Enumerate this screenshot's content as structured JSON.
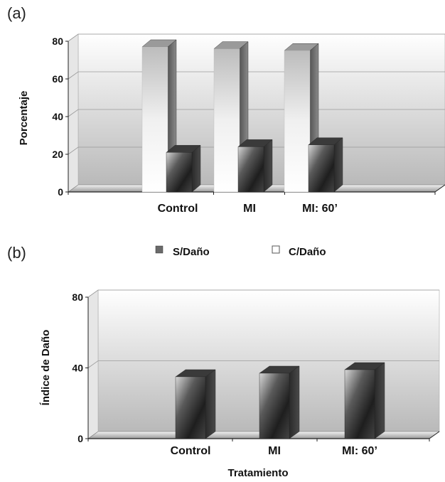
{
  "chart_data": [
    {
      "panel": "(a)",
      "type": "bar",
      "style": "3d",
      "categories": [
        "Control",
        "MI",
        "MI: 60’"
      ],
      "series": [
        {
          "name": "C/Daño",
          "values": [
            77,
            76,
            75
          ],
          "color": "#f4f4f4"
        },
        {
          "name": "S/Daño",
          "values": [
            21,
            24,
            25
          ],
          "color": "#4a4a4a"
        }
      ],
      "ylabel": "Porcentaje",
      "xlabel": "",
      "ylim": [
        0,
        80
      ],
      "yticks": [
        "0",
        "20",
        "40",
        "60",
        "80"
      ],
      "grid": true
    },
    {
      "panel": "(b)",
      "type": "bar",
      "style": "3d",
      "categories": [
        "Control",
        "MI",
        "MI: 60’"
      ],
      "series": [
        {
          "values": [
            35,
            37,
            39
          ],
          "color": "#4a4a4a"
        }
      ],
      "ylabel": "Índice de Daño",
      "xlabel": "Tratamiento",
      "ylim": [
        0,
        80
      ],
      "yticks": [
        "0",
        "40",
        "80"
      ],
      "grid": true
    }
  ],
  "legend": {
    "position": "between-panels",
    "items": [
      {
        "label": "S/Daño",
        "swatch": "filled-dark"
      },
      {
        "label": "C/Daño",
        "swatch": "hollow"
      }
    ]
  }
}
